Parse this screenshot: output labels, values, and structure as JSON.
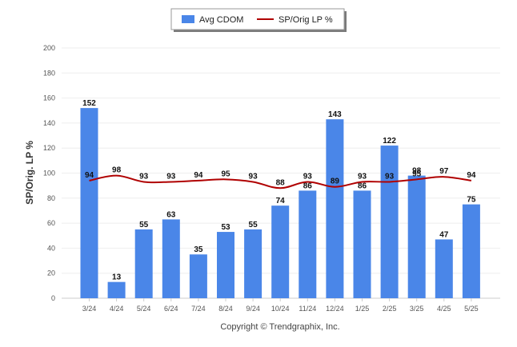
{
  "chart_data": {
    "type": "bar",
    "categories": [
      "3/24",
      "4/24",
      "5/24",
      "6/24",
      "7/24",
      "8/24",
      "9/24",
      "10/24",
      "11/24",
      "12/24",
      "1/25",
      "2/25",
      "3/25",
      "4/25",
      "5/25"
    ],
    "series": [
      {
        "name": "Avg CDOM",
        "type": "bar",
        "color": "#4a86e8",
        "values": [
          152,
          13,
          55,
          63,
          35,
          53,
          55,
          74,
          86,
          143,
          86,
          122,
          98,
          47,
          75
        ]
      },
      {
        "name": "SP/Orig LP %",
        "type": "line",
        "color": "#b00000",
        "values": [
          94,
          98,
          93,
          93,
          94,
          95,
          93,
          88,
          93,
          89,
          93,
          93,
          95,
          97,
          94
        ]
      }
    ],
    "ylabel": "SP/Orig. LP %",
    "ylim": [
      0,
      200
    ],
    "yticks": [
      0,
      20,
      40,
      60,
      80,
      100,
      120,
      140,
      160,
      180,
      200
    ],
    "grid": true,
    "legend": "top-center"
  },
  "legend": {
    "bar_label": "Avg CDOM",
    "line_label": "SP/Orig LP %"
  },
  "footer": {
    "copyright": "Copyright © Trendgraphix, Inc."
  }
}
